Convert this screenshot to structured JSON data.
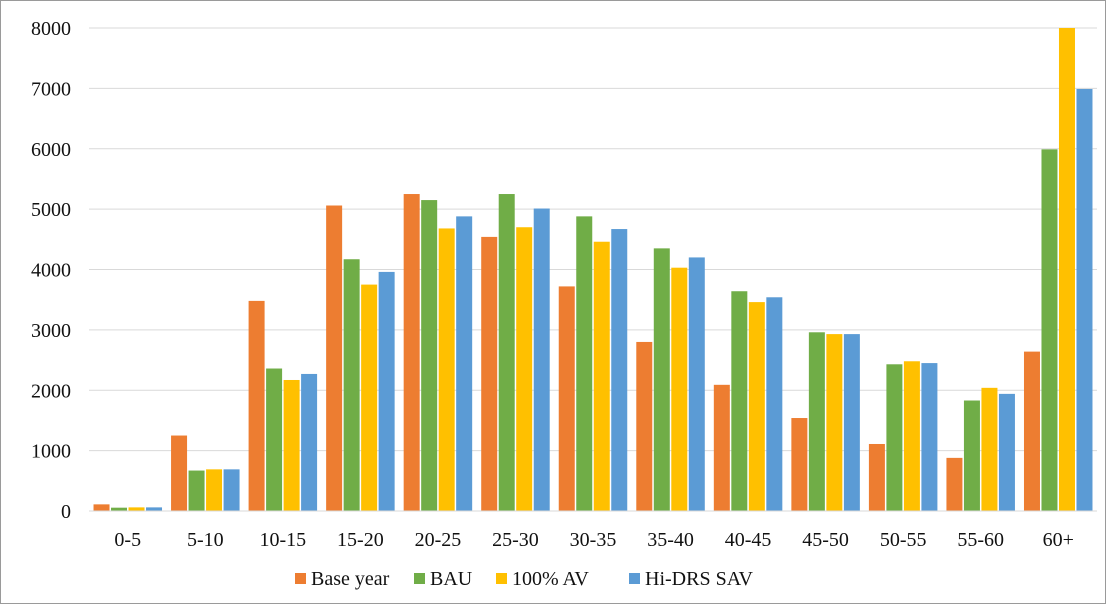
{
  "chart_data": {
    "type": "bar",
    "title": "",
    "xlabel": "",
    "ylabel": "",
    "ylim": [
      0,
      8000
    ],
    "yticks": [
      "0",
      "1000",
      "2000",
      "3000",
      "4000",
      "5000",
      "6000",
      "7000",
      "8000"
    ],
    "categories": [
      "0-5",
      "5-10",
      "10-15",
      "15-20",
      "20-25",
      "25-30",
      "30-35",
      "35-40",
      "40-45",
      "45-50",
      "50-55",
      "55-60",
      "60+"
    ],
    "series": [
      {
        "name": "Base year",
        "color": "#ED7D31",
        "values": [
          110,
          1250,
          3480,
          5060,
          5250,
          4540,
          3720,
          2800,
          2090,
          1540,
          1110,
          880,
          2640
        ]
      },
      {
        "name": "BAU",
        "color": "#70AD47",
        "values": [
          55,
          670,
          2360,
          4170,
          5150,
          5250,
          4880,
          4350,
          3640,
          2960,
          2430,
          1830,
          5990
        ]
      },
      {
        "name": "100% AV",
        "color": "#FFC000",
        "values": [
          60,
          690,
          2170,
          3750,
          4680,
          4700,
          4460,
          4030,
          3460,
          2930,
          2480,
          2040,
          8000
        ]
      },
      {
        "name": "Hi-DRS SAV",
        "color": "#5B9BD5",
        "values": [
          60,
          690,
          2270,
          3960,
          4880,
          5010,
          4670,
          4200,
          3540,
          2930,
          2450,
          1940,
          6990
        ]
      }
    ],
    "grid": true,
    "legend_position": "bottom"
  }
}
